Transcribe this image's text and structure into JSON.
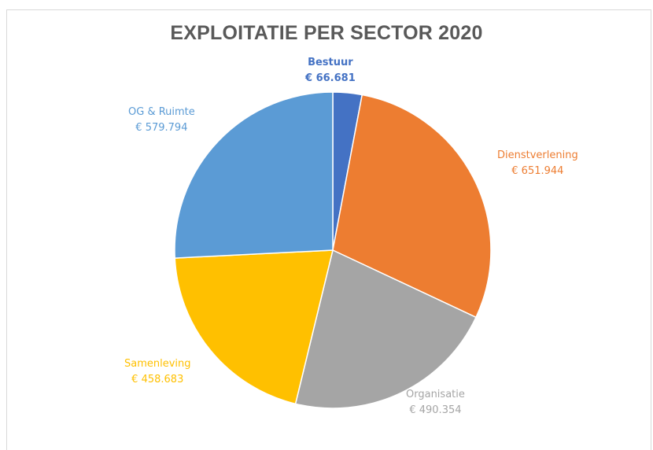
{
  "chart_data": {
    "type": "pie",
    "title": "EXPLOITATIE PER SECTOR 2020",
    "categories": [
      "Bestuur",
      "Dienstverlening",
      "Organisatie",
      "Samenleving",
      "OG & Ruimte"
    ],
    "values": [
      66681,
      651944,
      490354,
      458683,
      579794
    ],
    "value_labels": [
      "€ 66.681",
      "€ 651.944",
      "€ 490.354",
      "€ 458.683",
      "€ 579.794"
    ],
    "colors": [
      "#4472c4",
      "#ed7d31",
      "#a5a5a5",
      "#ffc000",
      "#5b9bd5"
    ],
    "label_colors": [
      "#4472c4",
      "#ed7d31",
      "#a5a5a5",
      "#ffc000",
      "#5b9bd5"
    ],
    "legend": "none",
    "start_angle": "12 o'clock, clockwise"
  }
}
